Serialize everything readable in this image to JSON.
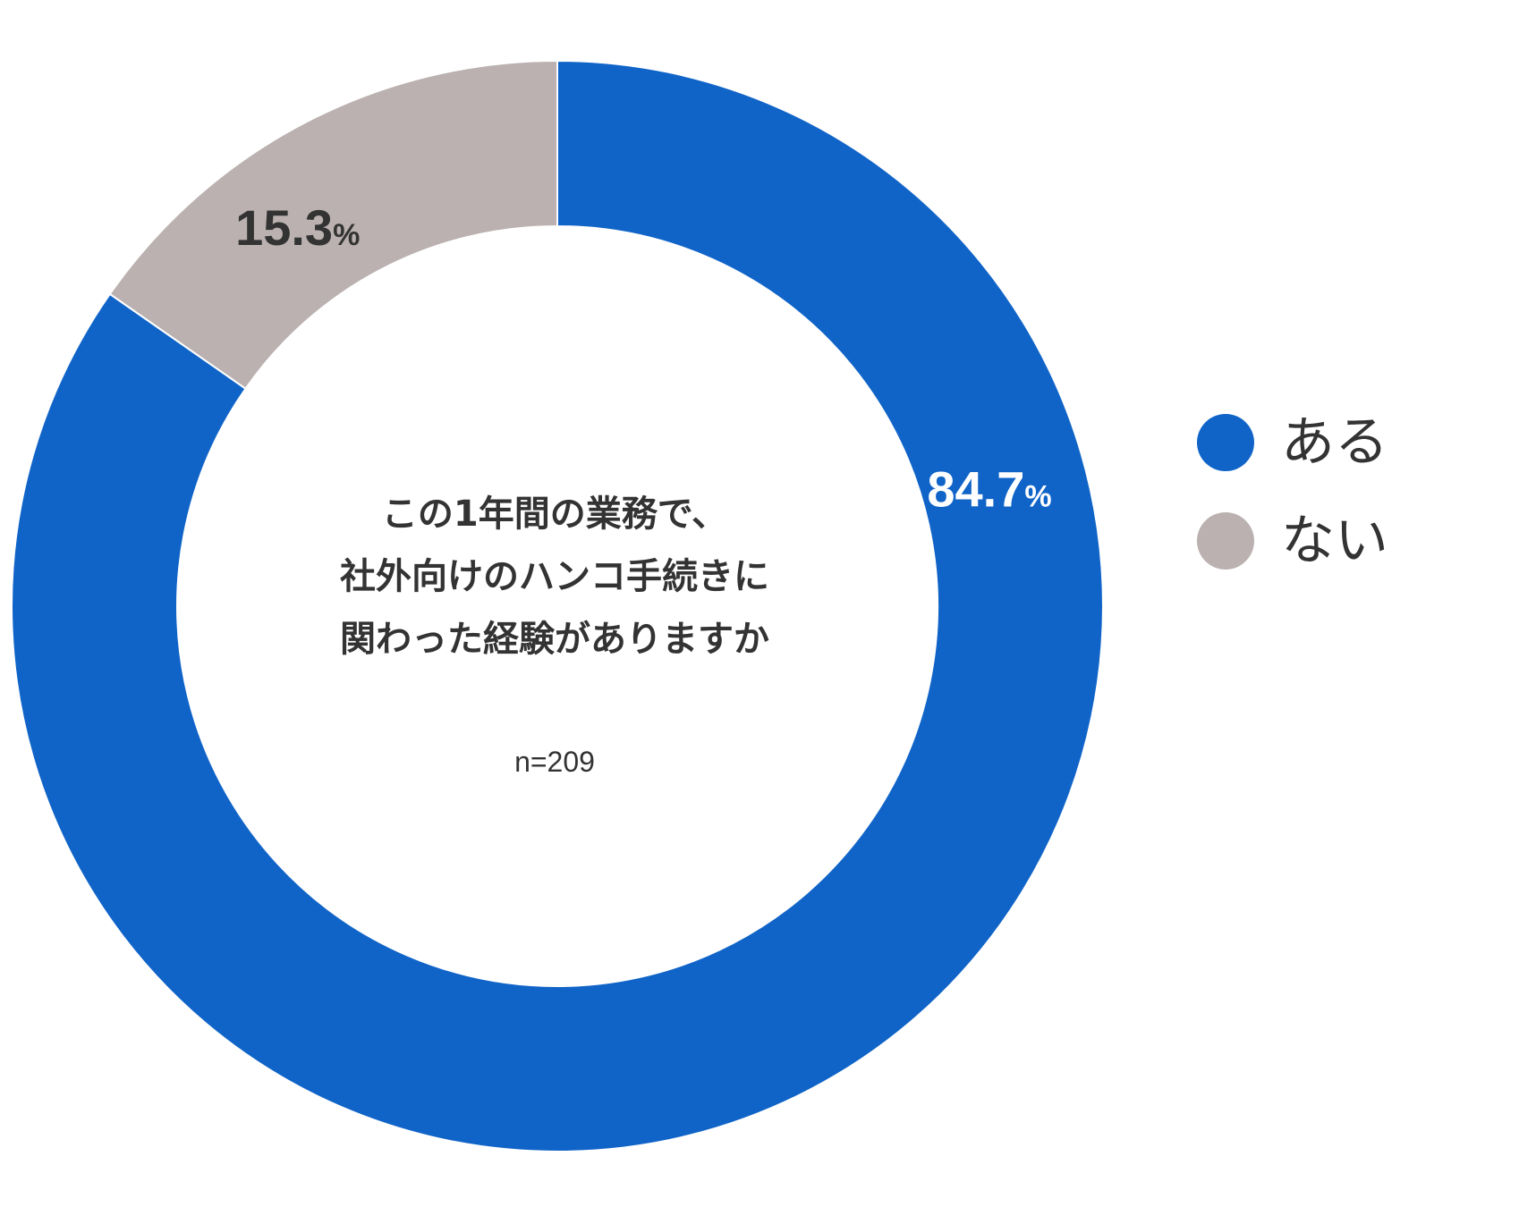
{
  "chart_data": {
    "type": "pie",
    "variant": "donut",
    "title_lines": [
      "この1年間の業務で、",
      "社外向けのハンコ手続きに",
      "関わった経験がありますか"
    ],
    "sample_size": "n=209",
    "legend_position": "right",
    "slices": [
      {
        "label": "ある",
        "value": 84.7,
        "value_text": "84.7",
        "unit": "%",
        "color": "#1064C8",
        "label_color": "#ffffff"
      },
      {
        "label": "ない",
        "value": 15.3,
        "value_text": "15.3",
        "unit": "%",
        "color": "#BAB1B0",
        "label_color": "#333333"
      }
    ]
  }
}
